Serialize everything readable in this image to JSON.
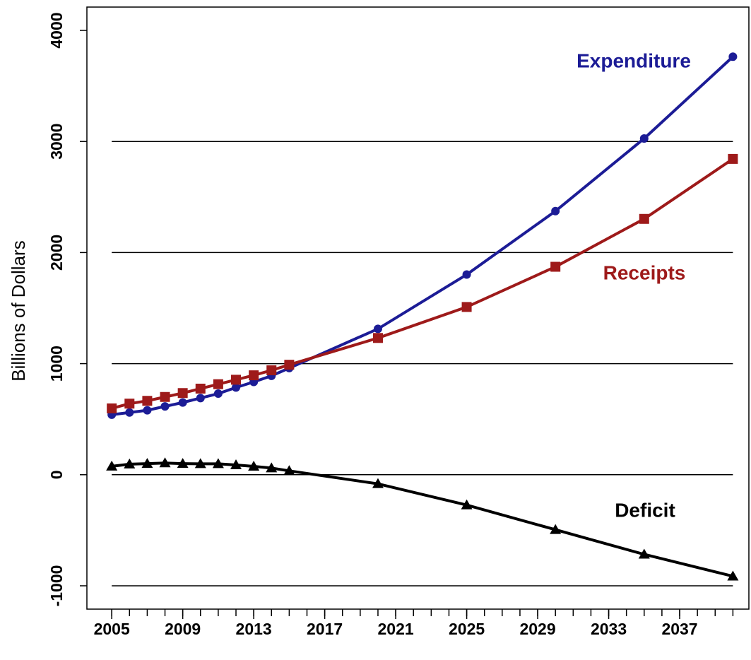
{
  "chart_data": {
    "type": "line",
    "y_label": "Billions of Dollars",
    "x": [
      2005,
      2006,
      2007,
      2008,
      2009,
      2010,
      2011,
      2012,
      2013,
      2014,
      2015,
      2020,
      2025,
      2030,
      2035,
      2040
    ],
    "series": [
      {
        "name": "Expenditure",
        "color": "#1c1c96",
        "marker": "circle",
        "values": [
          540,
          560,
          580,
          615,
          650,
          690,
          730,
          785,
          835,
          890,
          960,
          1313,
          1802,
          2373,
          3027,
          3763
        ]
      },
      {
        "name": "Receipts",
        "color": "#9e1a1a",
        "marker": "square",
        "values": [
          597,
          640,
          665,
          700,
          735,
          775,
          815,
          855,
          895,
          940,
          990,
          1231,
          1510,
          1872,
          2303,
          2843
        ]
      },
      {
        "name": "Deficit",
        "color": "#000000",
        "marker": "triangle",
        "values": [
          76,
          95,
          100,
          105,
          100,
          98,
          98,
          88,
          75,
          60,
          35,
          -82,
          -273,
          -495,
          -717,
          -914
        ]
      }
    ],
    "xlim": [
      2003.6,
      2040.9
    ],
    "ylim": [
      -1210,
      4210
    ],
    "xticks": [
      2005,
      2009,
      2013,
      2017,
      2021,
      2025,
      2029,
      2033,
      2037
    ],
    "xminor_ticks": [
      2005,
      2006,
      2007,
      2008,
      2009,
      2010,
      2011,
      2012,
      2013,
      2014,
      2015,
      2016,
      2017,
      2018,
      2019,
      2020,
      2021,
      2022,
      2023,
      2024,
      2025,
      2026,
      2027,
      2028,
      2029,
      2030,
      2031,
      2032,
      2033,
      2034,
      2035,
      2036,
      2037,
      2038,
      2039,
      2040
    ],
    "yticks": [
      -1000,
      0,
      1000,
      2000,
      3000,
      4000
    ],
    "grid_lines": [
      -1000,
      0,
      1000,
      2000,
      3000
    ]
  }
}
